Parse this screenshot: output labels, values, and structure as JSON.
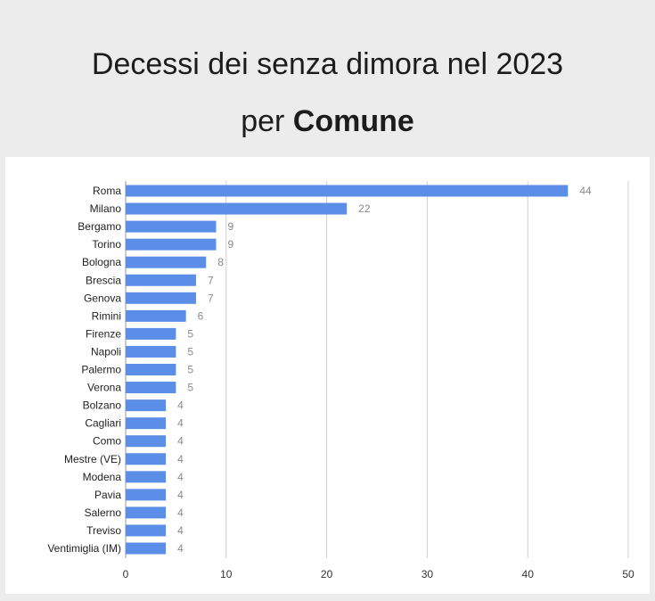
{
  "title": {
    "line1": "Decessi dei senza dimora nel 2023",
    "line2_prefix": "per",
    "line2_bold": "Comune"
  },
  "colors": {
    "bar": "#5b8ee6",
    "grid": "#d0d0d0",
    "value_label": "#8a8a8a",
    "category_label": "#222222"
  },
  "chart_data": {
    "type": "bar",
    "orientation": "horizontal",
    "categories": [
      "Roma",
      "Milano",
      "Bergamo",
      "Torino",
      "Bologna",
      "Brescia",
      "Genova",
      "Rimini",
      "Firenze",
      "Napoli",
      "Palermo",
      "Verona",
      "Bolzano",
      "Cagliari",
      "Como",
      "Mestre (VE)",
      "Modena",
      "Pavia",
      "Salerno",
      "Treviso",
      "Ventimiglia (IM)"
    ],
    "values": [
      44,
      22,
      9,
      9,
      8,
      7,
      7,
      6,
      5,
      5,
      5,
      5,
      4,
      4,
      4,
      4,
      4,
      4,
      4,
      4,
      4
    ],
    "xlim": [
      0,
      50
    ],
    "xticks": [
      0,
      10,
      20,
      30,
      40,
      50
    ],
    "grid": true,
    "legend": "none"
  }
}
